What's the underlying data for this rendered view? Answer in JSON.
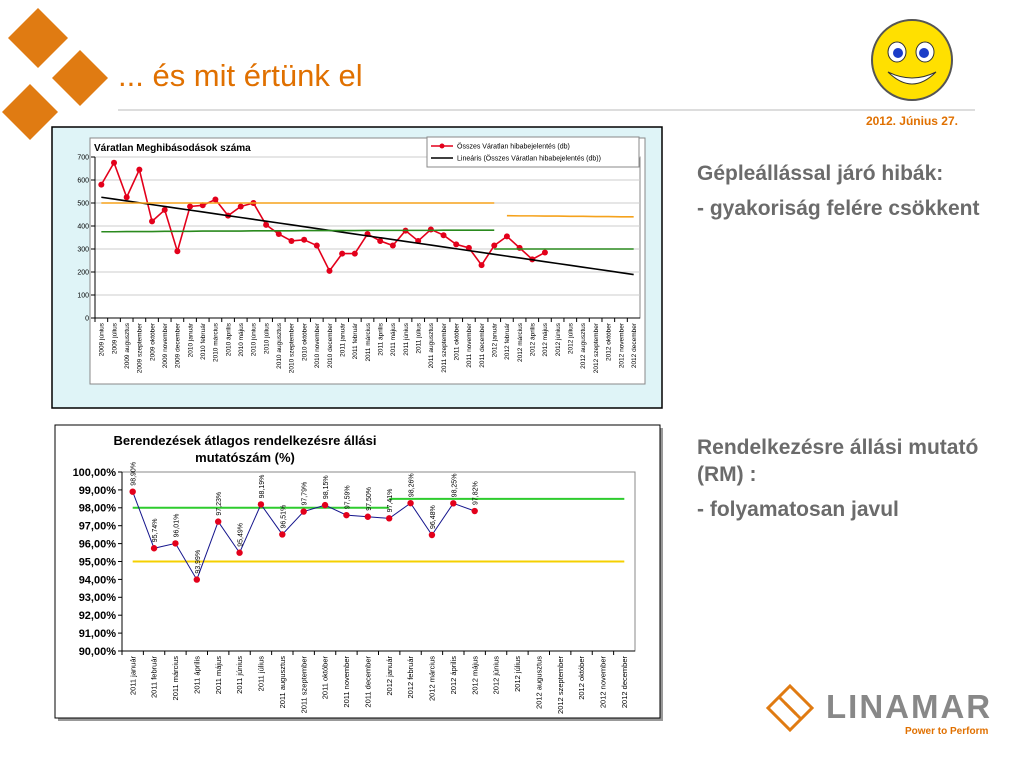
{
  "header": {
    "title": "... és mit értünk el",
    "date": "2012. Június 27."
  },
  "chart_data": [
    {
      "type": "line",
      "title": "Váratlan Meghibásodások száma",
      "categories": [
        "2009 június",
        "2009 július",
        "2009 augusztus",
        "2009 szeptember",
        "2009 október",
        "2009 november",
        "2009 december",
        "2010 január",
        "2010 február",
        "2010 március",
        "2010 április",
        "2010 május",
        "2010 június",
        "2010 július",
        "2010 augusztus",
        "2010 szeptember",
        "2010 október",
        "2010 november",
        "2010 december",
        "2011 január",
        "2011 február",
        "2011 március",
        "2011 április",
        "2011 május",
        "2011 június",
        "2011 július",
        "2011 augusztus",
        "2011 szeptember",
        "2011 október",
        "2011 november",
        "2011 december",
        "2012 január",
        "2012 február",
        "2012 március",
        "2012 április",
        "2012 május",
        "2012 június",
        "2012 július",
        "2012 augusztus",
        "2012 szeptember",
        "2012 október",
        "2012 november",
        "2012 december"
      ],
      "series": [
        {
          "name": "Összes Váratlan hibabejelentés (db)",
          "color": "#e3001b",
          "marker": true,
          "values": [
            580,
            675,
            525,
            645,
            420,
            470,
            290,
            485,
            490,
            515,
            445,
            485,
            500,
            405,
            365,
            335,
            340,
            315,
            205,
            280,
            280,
            365,
            335,
            315,
            380,
            335,
            385,
            360,
            320,
            305,
            230,
            315,
            355,
            305,
            255,
            285,
            null,
            null,
            null,
            null,
            null,
            null,
            null
          ]
        },
        {
          "name": "Lineáris (Összes Váratlan hibabejelentés (db))",
          "color": "#000000",
          "values": [
            525,
            517,
            509,
            501,
            493,
            485,
            477,
            469,
            461,
            453,
            445,
            437,
            429,
            421,
            413,
            405,
            397,
            389,
            381,
            373,
            365,
            357,
            349,
            341,
            333,
            325,
            317,
            309,
            301,
            293,
            285,
            277,
            269,
            261,
            253,
            245,
            237,
            229,
            221,
            213,
            205,
            197,
            189
          ]
        },
        {
          "color": "#f5a21c",
          "values": [
            500,
            500,
            500,
            500,
            500,
            500,
            500,
            500,
            500,
            500,
            500,
            500,
            500,
            500,
            500,
            500,
            500,
            500,
            500,
            500,
            500,
            500,
            500,
            500,
            500,
            500,
            500,
            500,
            500,
            500,
            500,
            500,
            null,
            null,
            null,
            null,
            null,
            null,
            null,
            null,
            null,
            null,
            null
          ]
        },
        {
          "color": "#f5a21c",
          "values": [
            null,
            null,
            null,
            null,
            null,
            null,
            null,
            null,
            null,
            null,
            null,
            null,
            null,
            null,
            null,
            null,
            null,
            null,
            null,
            null,
            null,
            null,
            null,
            null,
            null,
            null,
            null,
            null,
            null,
            null,
            null,
            null,
            445,
            444,
            444,
            443,
            443,
            442,
            442,
            441,
            441,
            440,
            440
          ]
        },
        {
          "color": "#2a8a1e",
          "values": [
            375,
            375,
            376,
            376,
            376,
            377,
            377,
            377,
            378,
            378,
            378,
            378,
            379,
            379,
            379,
            379,
            380,
            380,
            380,
            380,
            380,
            381,
            381,
            381,
            381,
            381,
            381,
            382,
            382,
            382,
            382,
            382,
            null,
            null,
            null,
            null,
            null,
            null,
            null,
            null,
            null,
            null,
            null
          ]
        },
        {
          "color": "#2a8a1e",
          "values": [
            null,
            null,
            null,
            null,
            null,
            null,
            null,
            null,
            null,
            null,
            null,
            null,
            null,
            null,
            null,
            null,
            null,
            null,
            null,
            null,
            null,
            null,
            null,
            null,
            null,
            null,
            null,
            null,
            null,
            null,
            null,
            300,
            300,
            300,
            300,
            300,
            300,
            300,
            300,
            300,
            300,
            300,
            300
          ]
        }
      ],
      "ylim": [
        0,
        700
      ],
      "yticks": [
        0,
        100,
        200,
        300,
        400,
        500,
        600,
        700
      ],
      "legend": "top-right"
    },
    {
      "type": "line",
      "title": "Berendezések átlagos rendelkezésre állási mutatószám (%)",
      "categories": [
        "2011 január",
        "2011 február",
        "2011 március",
        "2011 április",
        "2011 május",
        "2011 június",
        "2011 július",
        "2011 augusztus",
        "2011 szeptember",
        "2011 október",
        "2011 november",
        "2011 december",
        "2012 január",
        "2012 február",
        "2012 március",
        "2012 április",
        "2012 május",
        "2012 június",
        "2012 július",
        "2012 augusztus",
        "2012 szeptember",
        "2012 október",
        "2012 november",
        "2012 december"
      ],
      "series": [
        {
          "color": "#2ecc2e",
          "values": [
            98.0,
            98.0,
            98.0,
            98.0,
            98.0,
            98.0,
            98.0,
            98.0,
            98.0,
            98.0,
            98.0,
            98.0,
            98.0,
            null,
            null,
            null,
            null,
            null,
            null,
            null,
            null,
            null,
            null,
            null
          ]
        },
        {
          "color": "#2ecc2e",
          "values": [
            null,
            null,
            null,
            null,
            null,
            null,
            null,
            null,
            null,
            null,
            null,
            null,
            98.5,
            98.5,
            98.5,
            98.5,
            98.5,
            98.5,
            98.5,
            98.5,
            98.5,
            98.5,
            98.5,
            98.5
          ]
        },
        {
          "color": "#f5d000",
          "values": [
            95.0,
            95.0,
            95.0,
            95.0,
            95.0,
            95.0,
            95.0,
            95.0,
            95.0,
            95.0,
            95.0,
            95.0,
            95.0,
            95.0,
            95.0,
            95.0,
            95.0,
            95.0,
            95.0,
            95.0,
            95.0,
            95.0,
            95.0,
            95.0
          ]
        },
        {
          "color": "#14148c",
          "marker": true,
          "marker_color": "#e3001b",
          "values": [
            98.9,
            95.74,
            96.01,
            93.99,
            97.23,
            95.49,
            98.19,
            96.51,
            97.79,
            98.15,
            97.59,
            97.5,
            97.41,
            98.26,
            96.48,
            98.25,
            97.82,
            null,
            null,
            null,
            null,
            null,
            null,
            null
          ],
          "value_labels": [
            "98,90%",
            "95,74%",
            "96,01%",
            "93,99%",
            "97,23%",
            "95,49%",
            "98,19%",
            "96,51%",
            "97,79%",
            "98,15%",
            "97,59%",
            "97,50%",
            "97,41%",
            "98,26%",
            "96,48%",
            "98,25%",
            "97,82%",
            null,
            null,
            null,
            null,
            null,
            null,
            null
          ]
        }
      ],
      "ylim": [
        90,
        100
      ],
      "yticks": [
        {
          "value": 90,
          "label": "90,00%"
        },
        {
          "value": 91,
          "label": "91,00%"
        },
        {
          "value": 92,
          "label": "92,00%"
        },
        {
          "value": 93,
          "label": "93,00%"
        },
        {
          "value": 94,
          "label": "94,00%"
        },
        {
          "value": 95,
          "label": "95,00%"
        },
        {
          "value": 96,
          "label": "96,00%"
        },
        {
          "value": 97,
          "label": "97,00%"
        },
        {
          "value": 98,
          "label": "98,00%"
        },
        {
          "value": 99,
          "label": "99,00%"
        },
        {
          "value": 100,
          "label": "100,00%"
        }
      ]
    }
  ],
  "notes": [
    {
      "heading": "Gépleállással járó hibák:",
      "item": "- gyakoriság felére csökkent"
    },
    {
      "heading": "Rendelkezésre állási mutató (RM) :",
      "item": "- folyamatosan javul"
    }
  ],
  "logo": {
    "name": "LINAMAR",
    "tagline": "Power to Perform"
  }
}
